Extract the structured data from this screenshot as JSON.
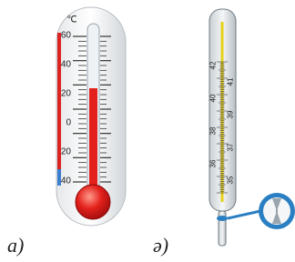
{
  "left_thermometer": {
    "unit": "℃",
    "scale": [
      60,
      40,
      20,
      0,
      20,
      40
    ]
  },
  "clinical_thermometer": {
    "scale_left": [
      42,
      40,
      38,
      36
    ],
    "scale_right": [
      41,
      39,
      37,
      35
    ]
  },
  "captions": [
    "а)",
    "ә)"
  ]
}
